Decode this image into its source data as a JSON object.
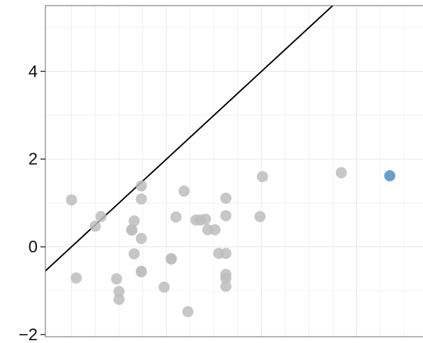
{
  "chart_data": {
    "type": "scatter",
    "title": "",
    "xlabel": "",
    "ylabel": "",
    "xlim": [
      -0.55,
      7.4
    ],
    "ylim": [
      -2.05,
      5.5
    ],
    "yticks": [
      -2,
      0,
      2,
      4
    ],
    "ytick_labels": [
      "−2",
      "0",
      "2",
      "4"
    ],
    "grid": true,
    "reference_line": {
      "type": "identity",
      "label": "y = x"
    },
    "colors": {
      "point": "#bdbdbd",
      "highlight": "#6a9ec9",
      "line": "#000000",
      "grid": "#ebebeb",
      "border": "#7f7f7f"
    },
    "series": [
      {
        "role": "gray",
        "points": [
          [
            0.0,
            1.07
          ],
          [
            0.1,
            -0.71
          ],
          [
            0.5,
            0.47
          ],
          [
            0.62,
            0.69
          ],
          [
            0.95,
            -0.73
          ],
          [
            1.0,
            -1.02
          ],
          [
            1.0,
            -1.2
          ],
          [
            1.27,
            0.38
          ],
          [
            1.27,
            0.39
          ],
          [
            1.32,
            0.59
          ],
          [
            1.32,
            -0.16
          ],
          [
            1.47,
            1.39
          ],
          [
            1.47,
            1.09
          ],
          [
            1.47,
            0.19
          ],
          [
            1.47,
            -0.57
          ],
          [
            1.47,
            -0.56
          ],
          [
            1.95,
            -0.92
          ],
          [
            2.1,
            -0.27
          ],
          [
            2.1,
            -0.28
          ],
          [
            2.2,
            0.68
          ],
          [
            2.37,
            1.27
          ],
          [
            2.45,
            -1.48
          ],
          [
            2.62,
            0.61
          ],
          [
            2.72,
            0.61
          ],
          [
            2.82,
            0.63
          ],
          [
            2.87,
            0.39
          ],
          [
            3.02,
            0.39
          ],
          [
            3.1,
            -0.15
          ],
          [
            3.25,
            -0.15
          ],
          [
            3.25,
            1.11
          ],
          [
            3.25,
            0.71
          ],
          [
            3.25,
            -0.63
          ],
          [
            3.25,
            -0.72
          ],
          [
            3.25,
            -0.9
          ],
          [
            3.97,
            0.69
          ],
          [
            4.02,
            1.6
          ],
          [
            5.68,
            1.69
          ]
        ]
      },
      {
        "role": "highlight",
        "points": [
          [
            6.7,
            1.62
          ]
        ]
      }
    ]
  }
}
